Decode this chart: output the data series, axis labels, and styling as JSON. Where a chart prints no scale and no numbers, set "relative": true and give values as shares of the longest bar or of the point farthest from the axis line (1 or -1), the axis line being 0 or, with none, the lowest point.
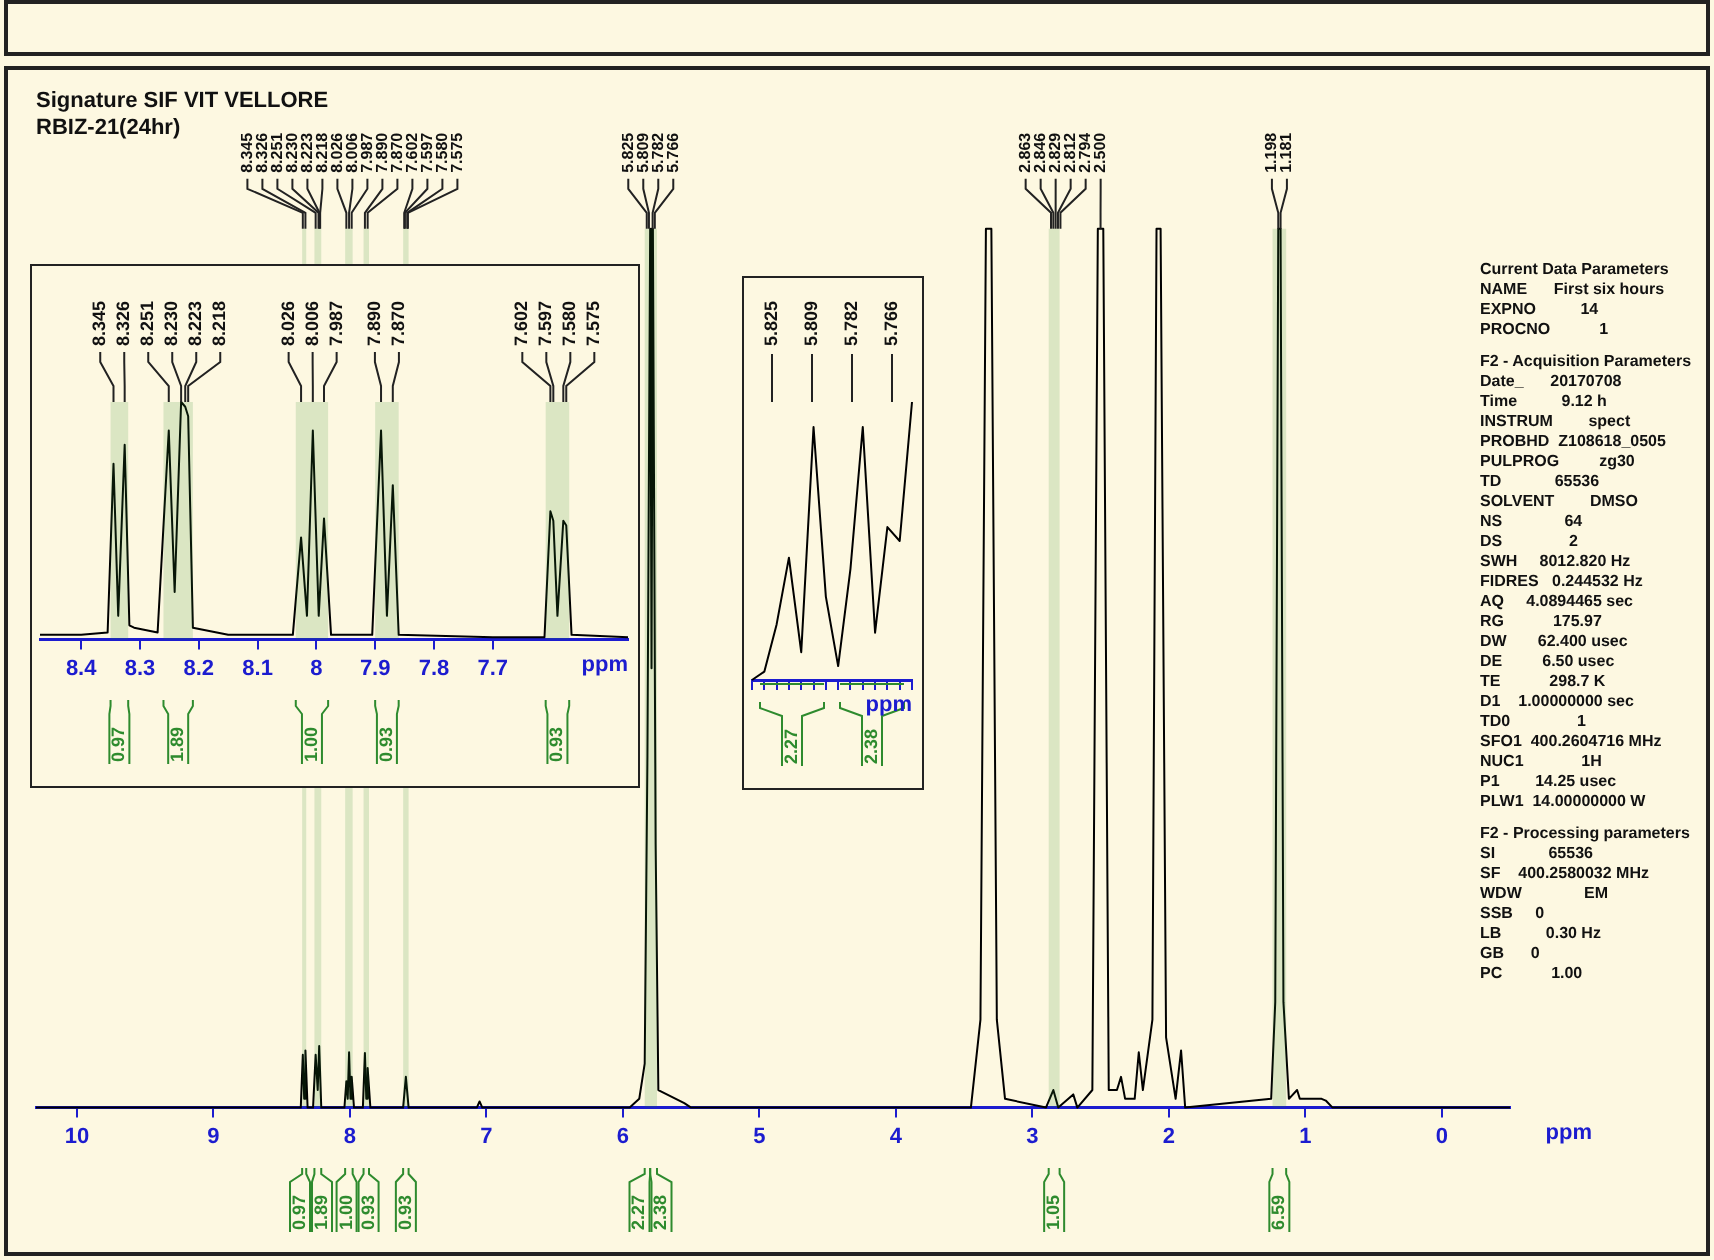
{
  "chart_data": [
    {
      "type": "line",
      "title": "Signature SIF VIT VELLORE",
      "subtitle": "RBIZ-21(24hr)",
      "xlabel": "ppm",
      "xlim": [
        10.3,
        -0.5
      ],
      "xticks": [
        10,
        9,
        8,
        7,
        6,
        5,
        4,
        3,
        2,
        1,
        0
      ],
      "relative": true,
      "grid": false,
      "legend": false,
      "x": [
        10.3,
        8.4,
        8.36,
        8.345,
        8.335,
        8.326,
        8.31,
        8.27,
        8.251,
        8.236,
        8.225,
        8.21,
        8.04,
        8.026,
        8.016,
        8.006,
        7.996,
        7.987,
        7.97,
        7.905,
        7.89,
        7.88,
        7.87,
        7.85,
        7.61,
        7.59,
        7.57,
        7.07,
        7.05,
        7.03,
        5.95,
        5.88,
        5.84,
        5.82,
        5.8,
        5.79,
        5.78,
        5.76,
        5.74,
        5.55,
        5.5,
        3.45,
        3.38,
        3.34,
        3.3,
        3.26,
        3.2,
        2.9,
        2.846,
        2.81,
        2.7,
        2.67,
        2.56,
        2.52,
        2.48,
        2.44,
        2.38,
        2.35,
        2.32,
        2.25,
        2.22,
        2.19,
        2.12,
        2.09,
        2.06,
        2.02,
        1.95,
        1.91,
        1.88,
        1.25,
        1.22,
        1.198,
        1.181,
        1.16,
        1.12,
        1.06,
        1.04,
        0.88,
        0.85,
        0.8,
        -0.5
      ],
      "series": [
        {
          "color": "#000000",
          "values": [
            0,
            0,
            0,
            0.06,
            0.01,
            0.065,
            0,
            0,
            0.06,
            0.02,
            0.07,
            0,
            0,
            0.03,
            0.01,
            0.063,
            0.01,
            0.035,
            0,
            0,
            0.062,
            0.01,
            0.045,
            0,
            0,
            0.035,
            0,
            0,
            0.007,
            0,
            0,
            0.01,
            0.05,
            0.4,
            1,
            0.5,
            1,
            0.3,
            0.02,
            0.005,
            0,
            0,
            0.1,
            1,
            1,
            0.1,
            0.01,
            0,
            0.02,
            0,
            0.015,
            0,
            0.02,
            1,
            1,
            0.02,
            0.02,
            0.035,
            0.01,
            0.01,
            0.063,
            0.02,
            0.1,
            1,
            1,
            0.08,
            0.01,
            0.065,
            0,
            0.01,
            0.12,
            1,
            1,
            0.12,
            0.01,
            0.02,
            0.01,
            0.01,
            0.008,
            0,
            0
          ]
        }
      ],
      "annotations": [
        {
          "text": "8.345",
          "x": 8.345,
          "y": 1
        },
        {
          "text": "8.326",
          "x": 8.326,
          "y": 1
        },
        {
          "text": "8.251",
          "x": 8.251,
          "y": 1
        },
        {
          "text": "8.230",
          "x": 8.23,
          "y": 1
        },
        {
          "text": "8.223",
          "x": 8.223,
          "y": 1
        },
        {
          "text": "8.218",
          "x": 8.218,
          "y": 1
        },
        {
          "text": "8.026",
          "x": 8.026,
          "y": 1
        },
        {
          "text": "8.006",
          "x": 8.006,
          "y": 1
        },
        {
          "text": "7.987",
          "x": 7.987,
          "y": 1
        },
        {
          "text": "7.890",
          "x": 7.89,
          "y": 1
        },
        {
          "text": "7.870",
          "x": 7.87,
          "y": 1
        },
        {
          "text": "7.602",
          "x": 7.602,
          "y": 1
        },
        {
          "text": "7.597",
          "x": 7.597,
          "y": 1
        },
        {
          "text": "7.580",
          "x": 7.58,
          "y": 1
        },
        {
          "text": "7.575",
          "x": 7.575,
          "y": 1
        },
        {
          "text": "5.825",
          "x": 5.825,
          "y": 1
        },
        {
          "text": "5.809",
          "x": 5.809,
          "y": 1
        },
        {
          "text": "5.782",
          "x": 5.782,
          "y": 1
        },
        {
          "text": "5.766",
          "x": 5.766,
          "y": 1
        },
        {
          "text": "2.863",
          "x": 2.863,
          "y": 1
        },
        {
          "text": "2.846",
          "x": 2.846,
          "y": 1
        },
        {
          "text": "2.829",
          "x": 2.829,
          "y": 1
        },
        {
          "text": "2.812",
          "x": 2.812,
          "y": 1
        },
        {
          "text": "2.794",
          "x": 2.794,
          "y": 1
        },
        {
          "text": "2.500",
          "x": 2.5,
          "y": 1
        },
        {
          "text": "1.198",
          "x": 1.198,
          "y": 1
        },
        {
          "text": "1.181",
          "x": 1.181,
          "y": 1
        }
      ],
      "bands": [
        {
          "axis": "x",
          "from": 8.35,
          "to": 8.32,
          "label": "0.97",
          "color": "#2e8b2e"
        },
        {
          "axis": "x",
          "from": 8.26,
          "to": 8.21,
          "label": "1.89",
          "color": "#2e8b2e"
        },
        {
          "axis": "x",
          "from": 8.035,
          "to": 7.98,
          "label": "1.00",
          "color": "#2e8b2e"
        },
        {
          "axis": "x",
          "from": 7.9,
          "to": 7.86,
          "label": "0.93",
          "color": "#2e8b2e"
        },
        {
          "axis": "x",
          "from": 7.61,
          "to": 7.57,
          "label": "0.93",
          "color": "#2e8b2e"
        },
        {
          "axis": "x",
          "from": 5.84,
          "to": 5.8,
          "label": "2.27",
          "color": "#2e8b2e"
        },
        {
          "axis": "x",
          "from": 5.8,
          "to": 5.75,
          "label": "2.38",
          "color": "#2e8b2e"
        },
        {
          "axis": "x",
          "from": 2.88,
          "to": 2.8,
          "label": "1.05",
          "color": "#2e8b2e"
        },
        {
          "axis": "x",
          "from": 1.24,
          "to": 1.14,
          "label": "6.59",
          "color": "#2e8b2e"
        }
      ]
    },
    {
      "type": "line",
      "xlabel": "ppm",
      "xlim": [
        8.47,
        7.47
      ],
      "xticks": [
        8.4,
        8.3,
        8.2,
        8.1,
        8.0,
        7.9,
        7.8,
        7.7
      ],
      "relative": true,
      "grid": false,
      "legend": false,
      "x": [
        8.47,
        8.4,
        8.355,
        8.345,
        8.337,
        8.326,
        8.318,
        8.31,
        8.27,
        8.251,
        8.241,
        8.23,
        8.223,
        8.218,
        8.21,
        8.15,
        8.04,
        8.026,
        8.016,
        8.006,
        7.996,
        7.987,
        7.975,
        7.905,
        7.89,
        7.88,
        7.87,
        7.86,
        7.7,
        7.612,
        7.602,
        7.597,
        7.59,
        7.58,
        7.575,
        7.566,
        7.47
      ],
      "series": [
        {
          "color": "#000000",
          "values": [
            0.02,
            0.02,
            0.03,
            0.74,
            0.1,
            0.82,
            0.06,
            0.05,
            0.03,
            0.88,
            0.2,
            1,
            0.98,
            0.94,
            0.05,
            0.02,
            0.02,
            0.43,
            0.1,
            0.88,
            0.1,
            0.51,
            0.02,
            0.02,
            0.88,
            0.1,
            0.65,
            0.02,
            0.01,
            0.01,
            0.54,
            0.5,
            0.1,
            0.5,
            0.48,
            0.02,
            0.01
          ]
        }
      ],
      "annotations": [
        {
          "text": "8.345",
          "x": 8.345,
          "y": 1
        },
        {
          "text": "8.326",
          "x": 8.326,
          "y": 1
        },
        {
          "text": "8.251",
          "x": 8.251,
          "y": 1
        },
        {
          "text": "8.230",
          "x": 8.23,
          "y": 1
        },
        {
          "text": "8.223",
          "x": 8.223,
          "y": 1
        },
        {
          "text": "8.218",
          "x": 8.218,
          "y": 1
        },
        {
          "text": "8.026",
          "x": 8.026,
          "y": 1
        },
        {
          "text": "8.006",
          "x": 8.006,
          "y": 1
        },
        {
          "text": "7.987",
          "x": 7.987,
          "y": 1
        },
        {
          "text": "7.890",
          "x": 7.89,
          "y": 1
        },
        {
          "text": "7.870",
          "x": 7.87,
          "y": 1
        },
        {
          "text": "7.602",
          "x": 7.602,
          "y": 1
        },
        {
          "text": "7.597",
          "x": 7.597,
          "y": 1
        },
        {
          "text": "7.580",
          "x": 7.58,
          "y": 1
        },
        {
          "text": "7.575",
          "x": 7.575,
          "y": 1
        }
      ],
      "bands": [
        {
          "axis": "x",
          "from": 8.35,
          "to": 8.32,
          "label": "0.97",
          "color": "#2e8b2e"
        },
        {
          "axis": "x",
          "from": 8.26,
          "to": 8.21,
          "label": "1.89",
          "color": "#2e8b2e"
        },
        {
          "axis": "x",
          "from": 8.035,
          "to": 7.98,
          "label": "1.00",
          "color": "#2e8b2e"
        },
        {
          "axis": "x",
          "from": 7.9,
          "to": 7.86,
          "label": "0.93",
          "color": "#2e8b2e"
        },
        {
          "axis": "x",
          "from": 7.61,
          "to": 7.57,
          "label": "0.93",
          "color": "#2e8b2e"
        }
      ]
    },
    {
      "type": "line",
      "xlabel": "ppm",
      "tick_labels": false,
      "relative": true,
      "grid": false,
      "legend": false,
      "categories": [
        null,
        null,
        null,
        null,
        null,
        null,
        null,
        null,
        null,
        null,
        null,
        null,
        null,
        null
      ],
      "series": [
        {
          "color": "#000000",
          "values": [
            0,
            0.03,
            0.2,
            0.44,
            0.1,
            0.91,
            0.3,
            0.05,
            0.4,
            0.91,
            0.17,
            0.55,
            0.5,
            1
          ]
        }
      ],
      "annotations": [
        "5.825",
        "5.809",
        "5.782",
        "5.766",
        "2.27",
        "2.38"
      ]
    },
    {
      "type": "other",
      "annotations": [
        "Current Data Parameters",
        "NAME      First six hours",
        "EXPNO          14",
        "PROCNO           1",
        "F2 - Acquisition Parameters",
        "Date_      20170708",
        "Time          9.12 h",
        "INSTRUM        spect",
        "PROBHD  Z108618_0505",
        "PULPROG         zg30",
        "TD            65536",
        "SOLVENT        DMSO",
        "NS              64",
        "DS               2",
        "SWH     8012.820 Hz",
        "FIDRES   0.244532 Hz",
        "AQ     4.0894465 sec",
        "RG           175.97",
        "DW       62.400 usec",
        "DE         6.50 usec",
        "TE           298.7 K",
        "D1    1.00000000 sec",
        "TD0               1",
        "SFO1  400.2604716 MHz",
        "NUC1             1H",
        "P1        14.25 usec",
        "PLW1  14.00000000 W",
        "F2 - Processing parameters",
        "SI            65536",
        "SF    400.2580032 MHz",
        "WDW              EM",
        "SSB     0",
        "LB          0.30 Hz",
        "GB      0",
        "PC           1.00"
      ]
    }
  ]
}
